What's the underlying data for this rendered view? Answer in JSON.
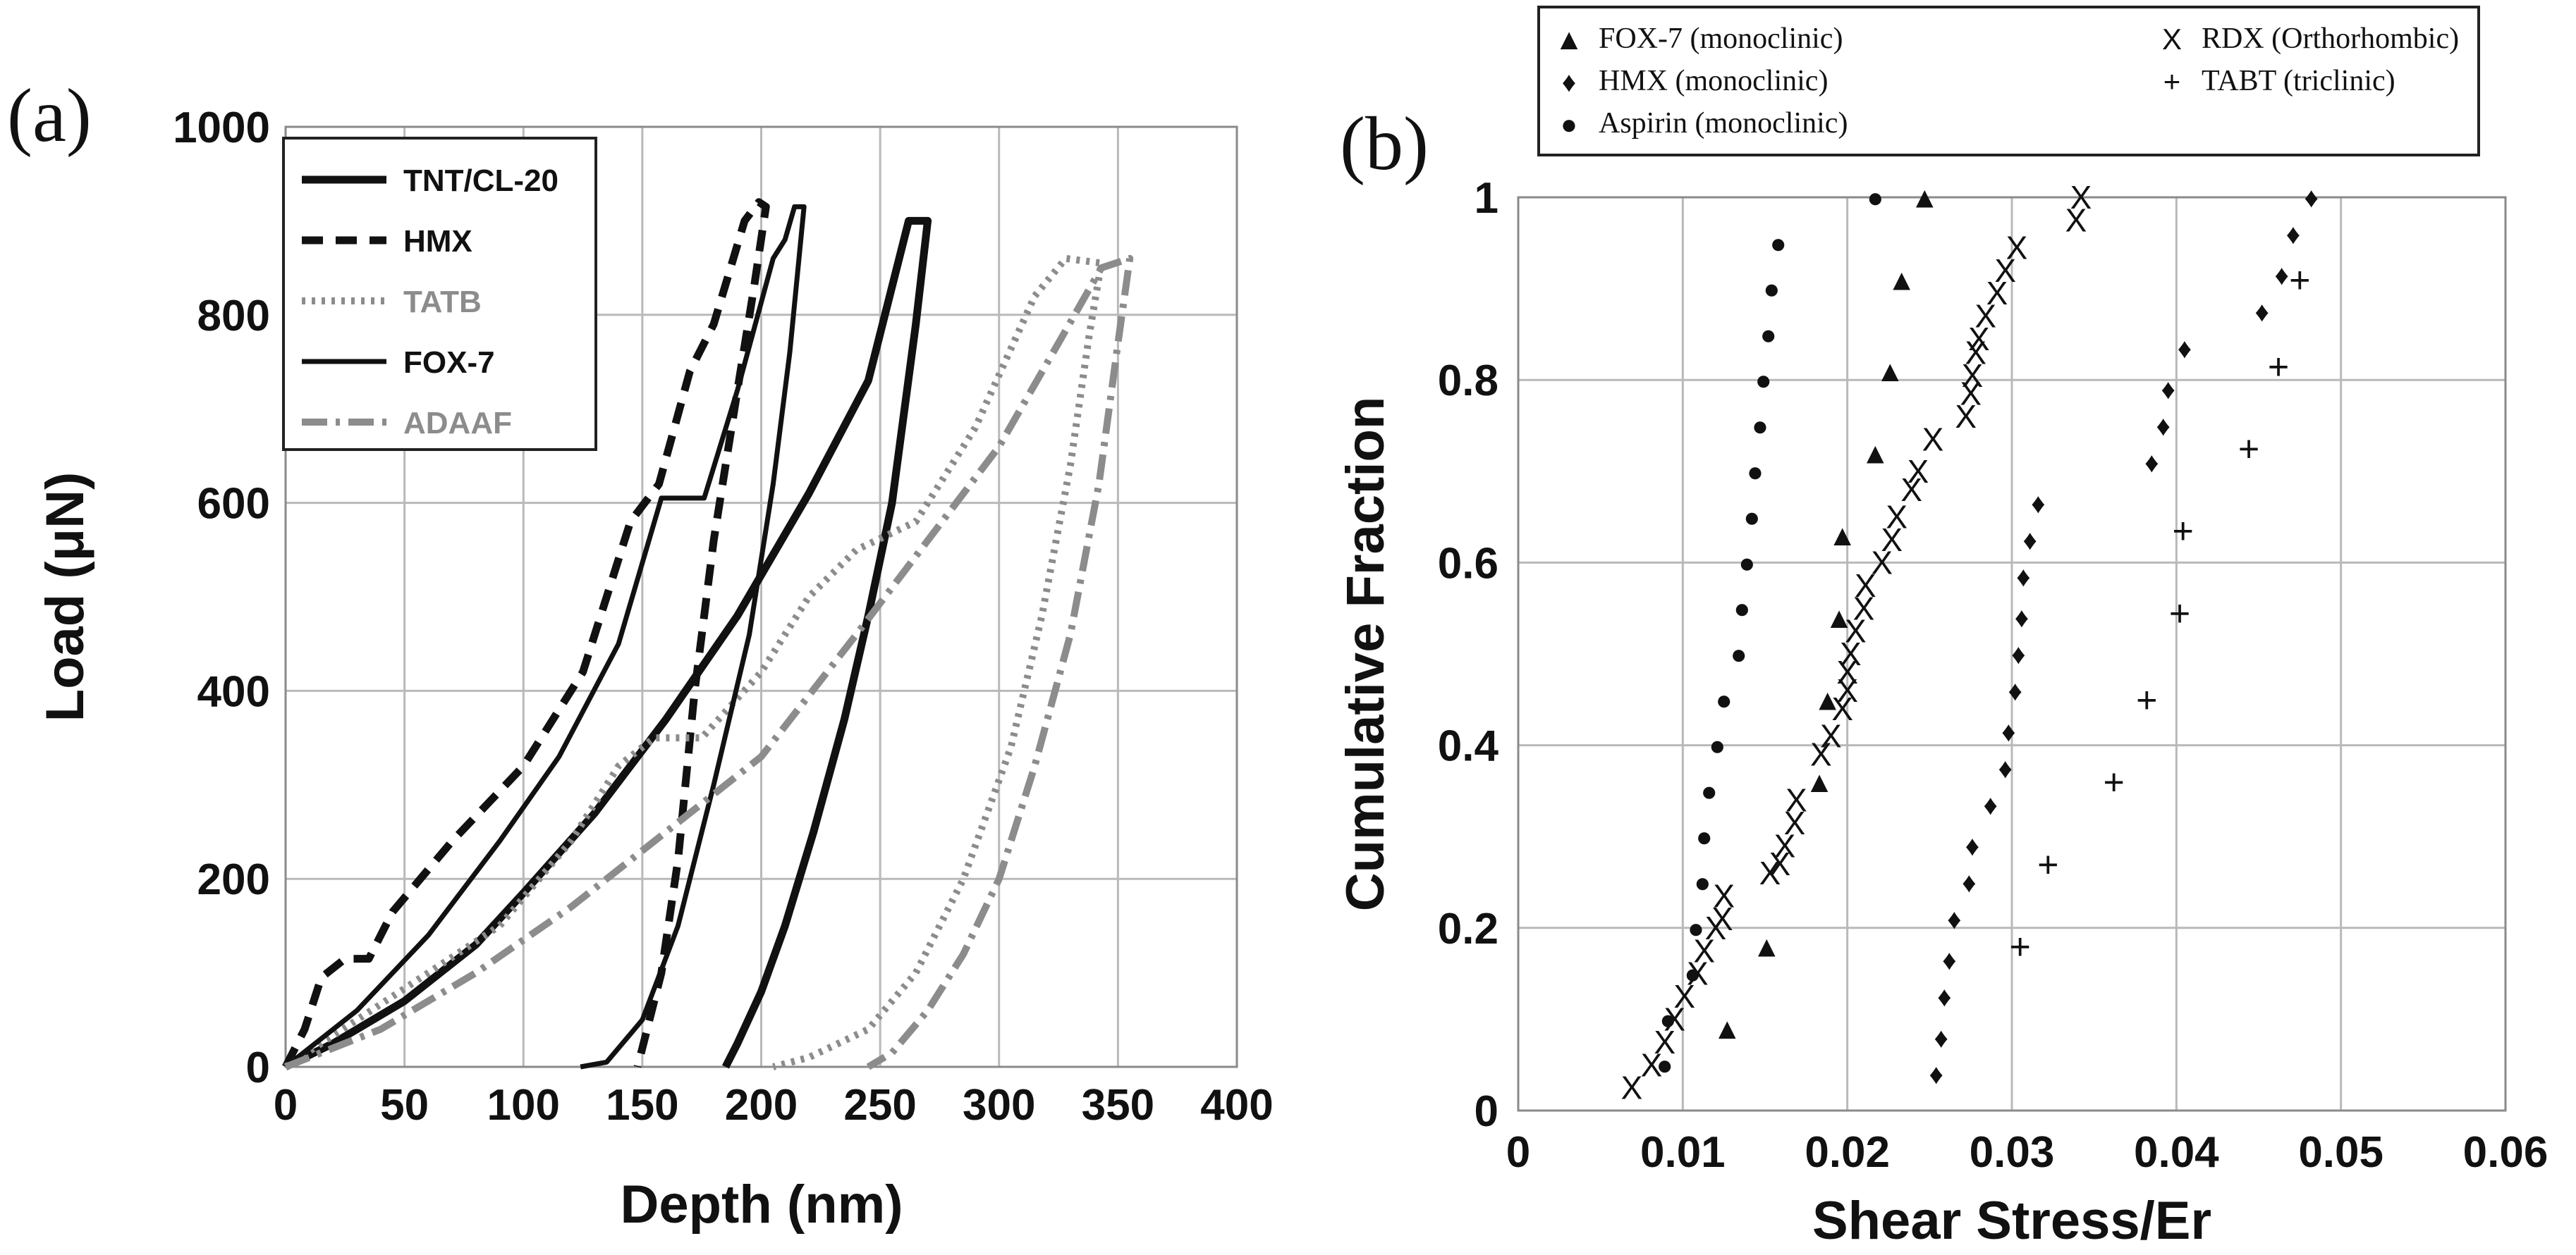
{
  "chart_data": [
    {
      "panel": "(a)",
      "type": "line",
      "xlabel": "Depth (nm)",
      "ylabel": "Load (μN)",
      "xlim": [
        0,
        400
      ],
      "ylim": [
        0,
        1000
      ],
      "xticks": [
        "0",
        "50",
        "100",
        "150",
        "200",
        "250",
        "300",
        "350",
        "400"
      ],
      "yticks": [
        "0",
        "200",
        "400",
        "600",
        "800",
        "1000"
      ],
      "grid": true,
      "legend_position": "top-left",
      "series": [
        {
          "name": "TNT/CL-20",
          "color": "#111111",
          "dash": "solid",
          "width": 11,
          "points": [
            [
              0,
              0
            ],
            [
              20,
              25
            ],
            [
              50,
              70
            ],
            [
              80,
              130
            ],
            [
              100,
              185
            ],
            [
              130,
              270
            ],
            [
              160,
              370
            ],
            [
              190,
              480
            ],
            [
              220,
              610
            ],
            [
              245,
              730
            ],
            [
              262,
              900
            ],
            [
              270,
              900
            ],
            [
              265,
              790
            ],
            [
              255,
              600
            ],
            [
              245,
              480
            ],
            [
              235,
              370
            ],
            [
              222,
              250
            ],
            [
              210,
              150
            ],
            [
              200,
              80
            ],
            [
              190,
              25
            ],
            [
              185,
              0
            ]
          ]
        },
        {
          "name": "HMX",
          "color": "#111111",
          "dash": "30,18",
          "width": 11,
          "points": [
            [
              0,
              0
            ],
            [
              8,
              40
            ],
            [
              15,
              95
            ],
            [
              25,
              115
            ],
            [
              35,
              115
            ],
            [
              45,
              165
            ],
            [
              70,
              240
            ],
            [
              100,
              320
            ],
            [
              125,
              420
            ],
            [
              145,
              580
            ],
            [
              157,
              620
            ],
            [
              170,
              740
            ],
            [
              180,
              790
            ],
            [
              193,
              900
            ],
            [
              199,
              920
            ],
            [
              202,
              915
            ],
            [
              197,
              830
            ],
            [
              190,
              720
            ],
            [
              180,
              560
            ],
            [
              172,
              400
            ],
            [
              165,
              220
            ],
            [
              158,
              100
            ],
            [
              150,
              20
            ],
            [
              148,
              0
            ]
          ]
        },
        {
          "name": "TATB",
          "color": "#8c8c8c",
          "dash": "5,9",
          "width": 10,
          "points": [
            [
              0,
              0
            ],
            [
              30,
              50
            ],
            [
              60,
              100
            ],
            [
              90,
              150
            ],
            [
              120,
              240
            ],
            [
              140,
              320
            ],
            [
              155,
              350
            ],
            [
              175,
              350
            ],
            [
              200,
              420
            ],
            [
              220,
              500
            ],
            [
              240,
              550
            ],
            [
              265,
              580
            ],
            [
              290,
              680
            ],
            [
              315,
              820
            ],
            [
              328,
              860
            ],
            [
              343,
              855
            ],
            [
              338,
              780
            ],
            [
              330,
              640
            ],
            [
              318,
              480
            ],
            [
              305,
              340
            ],
            [
              285,
              200
            ],
            [
              265,
              100
            ],
            [
              245,
              40
            ],
            [
              220,
              10
            ],
            [
              205,
              0
            ]
          ]
        },
        {
          "name": "FOX-7",
          "color": "#111111",
          "dash": "solid",
          "width": 7,
          "points": [
            [
              0,
              0
            ],
            [
              30,
              60
            ],
            [
              60,
              140
            ],
            [
              90,
              240
            ],
            [
              115,
              330
            ],
            [
              140,
              450
            ],
            [
              158,
              605
            ],
            [
              176,
              605
            ],
            [
              190,
              720
            ],
            [
              205,
              860
            ],
            [
              210,
              880
            ],
            [
              214,
              915
            ],
            [
              218,
              915
            ],
            [
              212,
              760
            ],
            [
              205,
              620
            ],
            [
              195,
              460
            ],
            [
              180,
              300
            ],
            [
              165,
              150
            ],
            [
              150,
              50
            ],
            [
              135,
              5
            ],
            [
              124,
              0
            ]
          ]
        },
        {
          "name": "ADAAF",
          "color": "#8c8c8c",
          "dash": "36,12,6,12",
          "width": 10,
          "points": [
            [
              0,
              0
            ],
            [
              40,
              40
            ],
            [
              80,
              100
            ],
            [
              120,
              170
            ],
            [
              160,
              250
            ],
            [
              200,
              330
            ],
            [
              240,
              460
            ],
            [
              270,
              560
            ],
            [
              300,
              660
            ],
            [
              325,
              770
            ],
            [
              343,
              850
            ],
            [
              355,
              860
            ],
            [
              350,
              770
            ],
            [
              342,
              620
            ],
            [
              330,
              460
            ],
            [
              315,
              320
            ],
            [
              300,
              200
            ],
            [
              285,
              120
            ],
            [
              270,
              60
            ],
            [
              255,
              15
            ],
            [
              245,
              0
            ]
          ]
        }
      ]
    },
    {
      "panel": "(b)",
      "type": "scatter",
      "xlabel": "Shear Stress/Er",
      "ylabel": "Cumulative Fraction",
      "xlim": [
        0,
        0.06
      ],
      "ylim": [
        0,
        1
      ],
      "xticks": [
        "0",
        "0.01",
        "0.02",
        "0.03",
        "0.04",
        "0.05",
        "0.06"
      ],
      "yticks": [
        "0",
        "0.2",
        "0.4",
        "0.6",
        "0.8",
        "1"
      ],
      "grid": true,
      "legend_position": "top",
      "series": [
        {
          "name": "FOX-7 (monoclinic)",
          "symbol": "▲",
          "points": [
            [
              0.0127,
              0.09
            ],
            [
              0.0151,
              0.18
            ],
            [
              0.0183,
              0.36
            ],
            [
              0.0188,
              0.45
            ],
            [
              0.0195,
              0.54
            ],
            [
              0.0197,
              0.63
            ],
            [
              0.0217,
              0.72
            ],
            [
              0.0226,
              0.81
            ],
            [
              0.0233,
              0.91
            ],
            [
              0.0247,
              1.0
            ]
          ]
        },
        {
          "name": "HMX (monoclinic)",
          "symbol": "♦",
          "points": [
            [
              0.0254,
              0.04
            ],
            [
              0.0257,
              0.08
            ],
            [
              0.0259,
              0.125
            ],
            [
              0.0262,
              0.165
            ],
            [
              0.0265,
              0.21
            ],
            [
              0.0274,
              0.25
            ],
            [
              0.0276,
              0.29
            ],
            [
              0.0287,
              0.335
            ],
            [
              0.0296,
              0.375
            ],
            [
              0.0298,
              0.415
            ],
            [
              0.0302,
              0.46
            ],
            [
              0.0304,
              0.5
            ],
            [
              0.0306,
              0.54
            ],
            [
              0.0307,
              0.585
            ],
            [
              0.0311,
              0.625
            ],
            [
              0.0316,
              0.665
            ],
            [
              0.0385,
              0.71
            ],
            [
              0.0392,
              0.75
            ],
            [
              0.0395,
              0.79
            ],
            [
              0.0405,
              0.835
            ],
            [
              0.0452,
              0.875
            ],
            [
              0.0464,
              0.915
            ],
            [
              0.0471,
              0.96
            ],
            [
              0.0482,
              1.0
            ]
          ]
        },
        {
          "name": "Aspirin (monoclinic)",
          "symbol": "●",
          "points": [
            [
              0.0089,
              0.05
            ],
            [
              0.0091,
              0.1
            ],
            [
              0.0106,
              0.15
            ],
            [
              0.0108,
              0.2
            ],
            [
              0.0112,
              0.25
            ],
            [
              0.0113,
              0.3
            ],
            [
              0.0116,
              0.35
            ],
            [
              0.0121,
              0.4
            ],
            [
              0.0125,
              0.45
            ],
            [
              0.0134,
              0.5
            ],
            [
              0.0136,
              0.55
            ],
            [
              0.0139,
              0.6
            ],
            [
              0.0142,
              0.65
            ],
            [
              0.0144,
              0.7
            ],
            [
              0.0147,
              0.75
            ],
            [
              0.0149,
              0.8
            ],
            [
              0.0152,
              0.85
            ],
            [
              0.0154,
              0.9
            ],
            [
              0.0158,
              0.95
            ],
            [
              0.0217,
              1.0
            ]
          ]
        },
        {
          "name": "RDX (Orthorhombic)",
          "symbol": "X",
          "points": [
            [
              0.0069,
              0.025
            ],
            [
              0.0081,
              0.05
            ],
            [
              0.0089,
              0.075
            ],
            [
              0.0095,
              0.1
            ],
            [
              0.0101,
              0.125
            ],
            [
              0.0109,
              0.15
            ],
            [
              0.0113,
              0.175
            ],
            [
              0.012,
              0.2
            ],
            [
              0.0124,
              0.21
            ],
            [
              0.0125,
              0.235
            ],
            [
              0.0153,
              0.26
            ],
            [
              0.0159,
              0.27
            ],
            [
              0.0162,
              0.29
            ],
            [
              0.0168,
              0.315
            ],
            [
              0.0169,
              0.34
            ],
            [
              0.0184,
              0.39
            ],
            [
              0.019,
              0.41
            ],
            [
              0.0197,
              0.44
            ],
            [
              0.02,
              0.46
            ],
            [
              0.02,
              0.48
            ],
            [
              0.0202,
              0.5
            ],
            [
              0.0205,
              0.525
            ],
            [
              0.021,
              0.55
            ],
            [
              0.0211,
              0.575
            ],
            [
              0.0221,
              0.6
            ],
            [
              0.0227,
              0.625
            ],
            [
              0.023,
              0.65
            ],
            [
              0.0239,
              0.68
            ],
            [
              0.0243,
              0.7
            ],
            [
              0.0252,
              0.735
            ],
            [
              0.0272,
              0.76
            ],
            [
              0.0275,
              0.785
            ],
            [
              0.0276,
              0.805
            ],
            [
              0.0278,
              0.83
            ],
            [
              0.028,
              0.845
            ],
            [
              0.0284,
              0.87
            ],
            [
              0.0291,
              0.895
            ],
            [
              0.0296,
              0.92
            ],
            [
              0.0303,
              0.945
            ],
            [
              0.0339,
              0.975
            ],
            [
              0.0342,
              1.0
            ]
          ]
        },
        {
          "name": "TABT (triclinic)",
          "symbol": "+",
          "points": [
            [
              0.0305,
              0.18
            ],
            [
              0.0322,
              0.27
            ],
            [
              0.0362,
              0.36
            ],
            [
              0.0382,
              0.45
            ],
            [
              0.0402,
              0.545
            ],
            [
              0.0404,
              0.635
            ],
            [
              0.0444,
              0.725
            ],
            [
              0.0462,
              0.815
            ],
            [
              0.0475,
              0.91
            ]
          ]
        }
      ]
    }
  ]
}
